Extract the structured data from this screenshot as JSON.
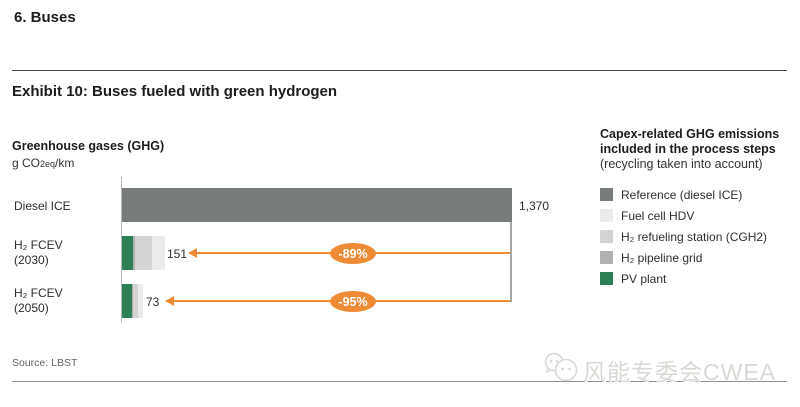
{
  "page": {
    "title": "6. Buses"
  },
  "exhibit": {
    "title": "Exhibit 10: Buses fueled with green hydrogen"
  },
  "chart": {
    "axis_title": "Greenhouse gases (GHG)",
    "unit_prefix": "g CO",
    "unit_sub": "2eq",
    "unit_suffix": "/km",
    "rows": [
      {
        "label_line1": "Diesel ICE",
        "label_line2": "",
        "value_label": "1,370",
        "badge": ""
      },
      {
        "label_line1": "H₂ FCEV",
        "label_line2": "(2030)",
        "value_label": "151",
        "badge": "-89%"
      },
      {
        "label_line1": "H₂ FCEV",
        "label_line2": "(2050)",
        "value_label": "73",
        "badge": "-95%"
      }
    ]
  },
  "chart_data": {
    "type": "bar",
    "orientation": "horizontal-stacked",
    "title": "Greenhouse gases (GHG)",
    "unit": "g CO2eq/km",
    "categories": [
      "Diesel ICE",
      "H₂ FCEV (2030)",
      "H₂ FCEV (2050)"
    ],
    "totals": [
      1370,
      151,
      73
    ],
    "total_labels": [
      "1,370",
      "151",
      "73"
    ],
    "xlim": [
      0,
      1370
    ],
    "grid": false,
    "series": [
      {
        "name": "Reference (diesel ICE)",
        "color": "#777b7a",
        "values": [
          1370,
          0,
          0
        ]
      },
      {
        "name": "PV plant",
        "color": "#2e7f55",
        "values": [
          0,
          39,
          35
        ]
      },
      {
        "name": "H₂ pipeline grid",
        "color": "#b1b1b1",
        "values": [
          0,
          7,
          4
        ]
      },
      {
        "name": "H₂ refueling station (CGH2)",
        "color": "#d4d4d4",
        "values": [
          0,
          61,
          17
        ]
      },
      {
        "name": "Fuel cell HDV",
        "color": "#ebebeb",
        "values": [
          0,
          44,
          17
        ]
      }
    ],
    "annotations": [
      {
        "label": "-89%",
        "row": "H₂ FCEV (2030)",
        "meaning": "reduction vs Diesel ICE"
      },
      {
        "label": "-95%",
        "row": "H₂ FCEV (2050)",
        "meaning": "reduction vs Diesel ICE"
      }
    ],
    "legend_position": "right"
  },
  "legend": {
    "title_bold": "Capex-related GHG emissions included in the process steps",
    "title_sub": "(recycling taken into account)",
    "items": [
      {
        "label": "Reference (diesel ICE)",
        "color": "#777b7a"
      },
      {
        "label": "Fuel cell HDV",
        "color": "#ebebeb"
      },
      {
        "label": "H₂ refueling station (CGH2)",
        "color": "#d4d4d4"
      },
      {
        "label": "H₂ pipeline grid",
        "color": "#b1b1b1"
      },
      {
        "label": "PV plant",
        "color": "#2e7f55"
      }
    ]
  },
  "footer": {
    "source": "Source: LBST",
    "watermark": "风能专委会CWEA"
  },
  "colors": {
    "accent_orange": "#ee8b35",
    "reference_gray": "#777b7a",
    "pv_green": "#2e7f55"
  }
}
